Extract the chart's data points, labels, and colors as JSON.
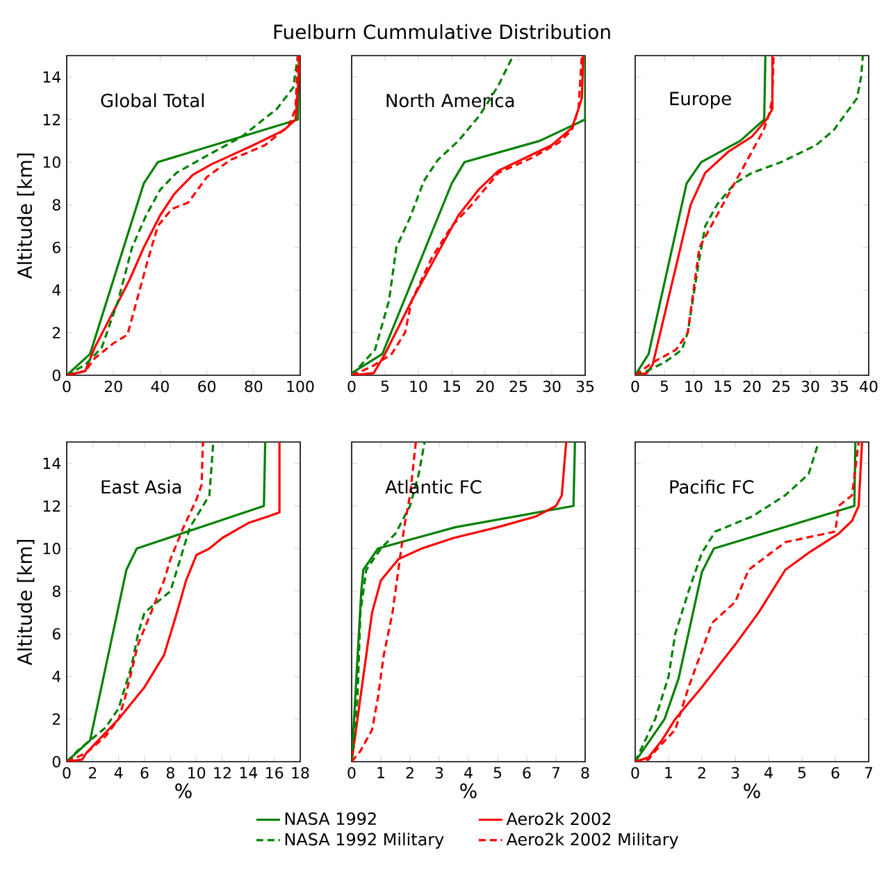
{
  "chart_data": [
    {
      "type": "line",
      "annotations": [
        "Global Total"
      ],
      "ylabel": "Altitude [km]",
      "xlim": [
        0,
        100
      ],
      "xticks": [
        0,
        20,
        40,
        60,
        80,
        100
      ],
      "ylim": [
        0,
        15
      ],
      "yticks": [
        0,
        2,
        4,
        6,
        8,
        10,
        12,
        14
      ],
      "series": [
        {
          "color": "#008000",
          "line_style": "solid",
          "x": [
            0,
            10,
            33,
            39,
            99,
            99.5
          ],
          "values": [
            0,
            1,
            9,
            10,
            12,
            15
          ]
        },
        {
          "color": "#ff0000",
          "line_style": "solid",
          "x": [
            0,
            8,
            9,
            12,
            20,
            27,
            33,
            40,
            46,
            54,
            62,
            70,
            80,
            93,
            98,
            100
          ],
          "values": [
            0,
            0.2,
            0.5,
            1.3,
            3,
            4.5,
            6,
            7.5,
            8.5,
            9.4,
            9.9,
            10.3,
            10.8,
            11.5,
            12,
            15
          ]
        },
        {
          "color": "#008000",
          "line_style": "dashed",
          "x": [
            0,
            8,
            15,
            22,
            28,
            34,
            40,
            47,
            60,
            75,
            90,
            97,
            99
          ],
          "values": [
            0,
            0.5,
            1.3,
            3.5,
            6,
            7.5,
            8.7,
            9.5,
            10.3,
            11.2,
            12.5,
            13.5,
            15
          ]
        },
        {
          "color": "#ff0000",
          "line_style": "dashed",
          "x": [
            0,
            8,
            12,
            20,
            26,
            30,
            35,
            39,
            45,
            52,
            60,
            70,
            85,
            95,
            98,
            99
          ],
          "values": [
            0,
            0.2,
            0.8,
            1.5,
            1.9,
            3.5,
            5.5,
            7,
            7.8,
            8.1,
            9.3,
            10.1,
            10.8,
            11.7,
            12.5,
            15
          ]
        }
      ]
    },
    {
      "type": "line",
      "title": "Fuelburn Cummulative Distribution",
      "annotations": [
        "North America"
      ],
      "tick_labels": "x",
      "xlim": [
        0,
        35
      ],
      "xticks": [
        0,
        5,
        10,
        15,
        20,
        25,
        30,
        35
      ],
      "ylim": [
        0,
        15
      ],
      "yticks": [
        0,
        2,
        4,
        6,
        8,
        10,
        12,
        14
      ],
      "series": [
        {
          "color": "#008000",
          "line_style": "solid",
          "x": [
            0,
            4.6,
            15,
            16.9,
            28.2,
            35,
            35
          ],
          "values": [
            0.1,
            1,
            9,
            10,
            11,
            12,
            15
          ]
        },
        {
          "color": "#ff0000",
          "line_style": "solid",
          "x": [
            0,
            3.3,
            5,
            9,
            12.5,
            16,
            19,
            22,
            26,
            30,
            33,
            34,
            34.5,
            34.7
          ],
          "values": [
            0,
            0.1,
            1,
            3.5,
            5.5,
            7.5,
            8.7,
            9.6,
            10.2,
            10.8,
            11.6,
            12.5,
            13,
            15
          ]
        },
        {
          "color": "#008000",
          "line_style": "dashed",
          "x": [
            0,
            3.5,
            5.6,
            6.7,
            8.75,
            10.8,
            12.9,
            16,
            19.2,
            22,
            24.2
          ],
          "values": [
            0,
            1.2,
            3.5,
            6,
            7.4,
            9.1,
            10.1,
            11,
            12.2,
            13.6,
            15
          ]
        },
        {
          "color": "#ff0000",
          "line_style": "dashed",
          "x": [
            0,
            3,
            6,
            8,
            9,
            12,
            15,
            18,
            22,
            27,
            31,
            33,
            34,
            34.5
          ],
          "values": [
            0,
            0.4,
            1,
            2,
            3.5,
            5.5,
            7,
            8,
            9.5,
            10.2,
            10.9,
            11.5,
            12.5,
            15
          ]
        }
      ]
    },
    {
      "type": "line",
      "annotations": [
        "Europe"
      ],
      "tick_labels": "x",
      "xlim": [
        0,
        40
      ],
      "xticks": [
        0,
        5,
        10,
        15,
        20,
        25,
        30,
        35,
        40
      ],
      "ylim": [
        0,
        15
      ],
      "yticks": [
        0,
        2,
        4,
        6,
        8,
        10,
        12,
        14
      ],
      "series": [
        {
          "color": "#008000",
          "line_style": "solid",
          "x": [
            0,
            2.3,
            8.8,
            11.3,
            18,
            22.1,
            22.3
          ],
          "values": [
            0,
            1,
            9,
            10,
            11,
            12,
            15
          ]
        },
        {
          "color": "#ff0000",
          "line_style": "solid",
          "x": [
            0,
            2,
            3,
            9.5,
            12,
            16,
            20,
            22.5,
            23.5,
            23.5
          ],
          "values": [
            0,
            0.1,
            0.5,
            8,
            9.5,
            10.5,
            11.2,
            12,
            12.5,
            15
          ]
        },
        {
          "color": "#008000",
          "line_style": "dashed",
          "x": [
            0,
            2,
            5,
            8,
            9,
            11,
            12,
            14,
            17,
            20,
            25,
            31,
            34,
            38,
            38.7,
            39
          ],
          "values": [
            0,
            0.2,
            0.6,
            1.2,
            2,
            5.5,
            7,
            8,
            9,
            9.5,
            10,
            10.8,
            11.5,
            13,
            14,
            15
          ]
        },
        {
          "color": "#ff0000",
          "line_style": "dashed",
          "x": [
            0,
            3,
            7,
            9,
            10,
            11,
            12,
            14,
            16,
            18,
            20,
            22,
            23,
            23.5,
            23.7
          ],
          "values": [
            0,
            0.6,
            1.2,
            2,
            4,
            6,
            6.5,
            7.5,
            8.5,
            9.5,
            10.5,
            11.5,
            12.3,
            13,
            15
          ]
        }
      ]
    },
    {
      "type": "line",
      "annotations": [
        "East Asia"
      ],
      "xlabel": "%",
      "ylabel": "Altitude [km]",
      "xlim": [
        0,
        18
      ],
      "xticks": [
        0,
        2,
        4,
        6,
        8,
        10,
        12,
        14,
        16,
        18
      ],
      "ylim": [
        0,
        15
      ],
      "yticks": [
        0,
        2,
        4,
        6,
        8,
        10,
        12,
        14
      ],
      "series": [
        {
          "color": "#008000",
          "line_style": "solid",
          "x": [
            0,
            1.8,
            4.6,
            5.4,
            15.2,
            15.3
          ],
          "values": [
            0,
            1,
            9,
            10,
            12,
            15
          ]
        },
        {
          "color": "#ff0000",
          "line_style": "solid",
          "x": [
            0,
            1.2,
            1.5,
            4,
            6,
            7.5,
            8.5,
            9.2,
            10,
            11,
            12,
            14,
            15.5,
            16.4,
            16.4
          ],
          "values": [
            0,
            0.1,
            0.4,
            2,
            3.5,
            5,
            7,
            8.5,
            9.7,
            10,
            10.5,
            11.2,
            11.5,
            11.7,
            15
          ]
        },
        {
          "color": "#008000",
          "line_style": "dashed",
          "x": [
            0,
            1,
            2,
            3,
            4,
            5,
            5.5,
            6,
            7,
            8,
            9,
            9.5,
            10.5,
            11,
            11.3
          ],
          "values": [
            0,
            0.6,
            1.1,
            1.6,
            2.5,
            4.5,
            6,
            7,
            7.5,
            8,
            10,
            11,
            12,
            12.5,
            15
          ]
        },
        {
          "color": "#ff0000",
          "line_style": "dashed",
          "x": [
            0,
            1.5,
            3,
            4,
            4.5,
            5.5,
            6.5,
            7.5,
            8,
            9,
            10,
            10.4,
            10.5
          ],
          "values": [
            0,
            0.4,
            1.2,
            2,
            3,
            5.5,
            7,
            8.5,
            9.5,
            11,
            12.3,
            13,
            15
          ]
        }
      ]
    },
    {
      "type": "line",
      "annotations": [
        "Atlantic FC"
      ],
      "xlabel": "%",
      "tick_labels": "x",
      "legend": "bottom",
      "xlim": [
        0,
        8
      ],
      "xticks": [
        0,
        1,
        2,
        3,
        4,
        5,
        6,
        7,
        8
      ],
      "ylim": [
        0,
        15
      ],
      "yticks": [
        0,
        2,
        4,
        6,
        8,
        10,
        12,
        14
      ],
      "series": [
        {
          "name": "NASA 1992",
          "color": "#008000",
          "line_style": "solid",
          "x": [
            0,
            0.33,
            0.4,
            0.9,
            3.55,
            7.6,
            7.65
          ],
          "values": [
            0,
            8,
            9,
            10,
            11,
            12,
            15
          ]
        },
        {
          "name": "Aero2k 2002",
          "color": "#ff0000",
          "line_style": "solid",
          "x": [
            0,
            0.2,
            0.5,
            0.7,
            1,
            1.6,
            2.4,
            3.5,
            5,
            6.3,
            7,
            7.2,
            7.35
          ],
          "values": [
            0,
            2,
            5,
            7,
            8.5,
            9.5,
            10,
            10.5,
            11,
            11.5,
            12,
            12.5,
            15
          ]
        },
        {
          "name": "NASA 1992 Military",
          "color": "#008000",
          "line_style": "dashed",
          "x": [
            0,
            0.2,
            0.3,
            0.5,
            1,
            1.5,
            2,
            2.3,
            2.5
          ],
          "values": [
            0,
            3,
            7,
            9,
            10,
            10.7,
            12,
            13.5,
            15
          ]
        },
        {
          "name": "Aero2k 2002 Military",
          "color": "#ff0000",
          "line_style": "dashed",
          "x": [
            0,
            0.3,
            0.7,
            0.9,
            1.1,
            1.4,
            1.6,
            1.7,
            1.8,
            2,
            2.2
          ],
          "values": [
            0,
            0.5,
            1.5,
            3,
            5,
            7,
            9,
            10,
            11,
            12.5,
            15
          ]
        }
      ]
    },
    {
      "type": "line",
      "annotations": [
        "Pacific FC"
      ],
      "xlabel": "%",
      "tick_labels": "x",
      "xlim": [
        0,
        7
      ],
      "xticks": [
        0,
        1,
        2,
        3,
        4,
        5,
        6,
        7
      ],
      "ylim": [
        0,
        15
      ],
      "yticks": [
        0,
        2,
        4,
        6,
        8,
        10,
        12,
        14
      ],
      "series": [
        {
          "color": "#008000",
          "line_style": "solid",
          "x": [
            0,
            0.88,
            1.3,
            2,
            2.36,
            6.57,
            6.6
          ],
          "values": [
            0,
            2,
            3.9,
            8.9,
            10,
            12,
            15
          ]
        },
        {
          "color": "#ff0000",
          "line_style": "solid",
          "x": [
            0,
            0.4,
            0.8,
            1.2,
            2,
            3,
            3.7,
            4.5,
            5.2,
            6.1,
            6.5,
            6.7,
            6.8
          ],
          "values": [
            0,
            0.2,
            1,
            2,
            3.5,
            5.5,
            7,
            9,
            9.8,
            10.7,
            11.3,
            12,
            15
          ]
        },
        {
          "color": "#008000",
          "line_style": "dashed",
          "x": [
            0,
            0.3,
            0.6,
            1,
            1.2,
            1.6,
            2,
            2.4,
            3.5,
            4.5,
            5.2,
            5.5
          ],
          "values": [
            0,
            1,
            2,
            4,
            6,
            8,
            9.8,
            10.8,
            11.5,
            12.5,
            13.5,
            15
          ]
        },
        {
          "color": "#ff0000",
          "line_style": "dashed",
          "x": [
            0,
            0.4,
            0.6,
            1.2,
            1.6,
            2.3,
            3,
            3.4,
            4.5,
            6,
            6.1,
            6.5,
            6.7
          ],
          "values": [
            0,
            0.1,
            0.5,
            1.5,
            3.5,
            6.5,
            7.5,
            9,
            10.3,
            10.8,
            12,
            12.5,
            15
          ]
        }
      ]
    }
  ]
}
